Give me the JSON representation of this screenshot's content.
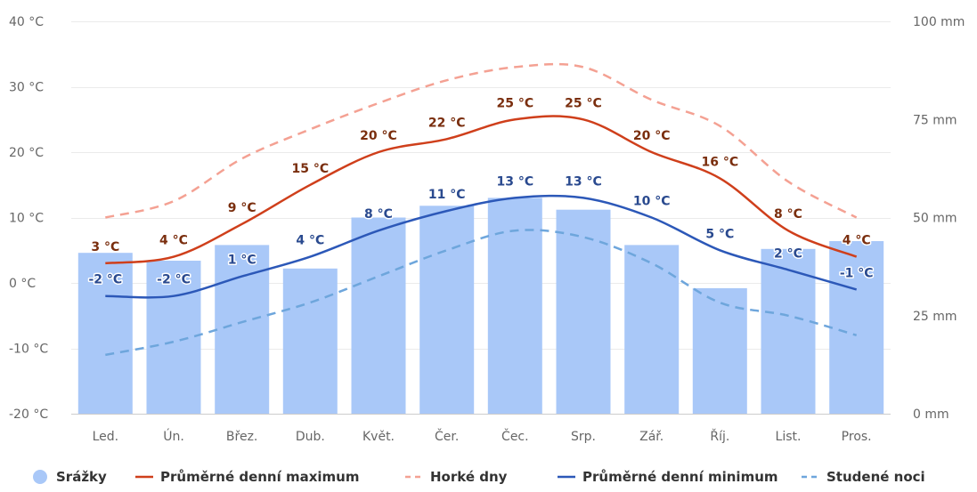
{
  "chart_data": {
    "type": "bar",
    "categories": [
      "Led.",
      "Ún.",
      "Břez.",
      "Dub.",
      "Květ.",
      "Čer.",
      "Čec.",
      "Srp.",
      "Zář.",
      "Říj.",
      "List.",
      "Pros."
    ],
    "y_left": {
      "ticks": [
        "40 °C",
        "30 °C",
        "20 °C",
        "10 °C",
        "0 °C",
        "-10 °C",
        "-20 °C"
      ],
      "tick_values": [
        40,
        30,
        20,
        10,
        0,
        -10,
        -20
      ],
      "range": [
        -20,
        40
      ],
      "unit": "°C"
    },
    "y_right": {
      "ticks": [
        "100 mm",
        "75 mm",
        "50 mm",
        "25 mm",
        "0 mm"
      ],
      "tick_values": [
        100,
        75,
        50,
        25,
        0
      ],
      "range": [
        0,
        100
      ],
      "unit": "mm"
    },
    "grid": true,
    "legend_position": "bottom",
    "series": [
      {
        "name": "Srážky",
        "kind": "bar",
        "axis": "right",
        "color": "#a9c8f8",
        "values": [
          41,
          39,
          43,
          37,
          50,
          53,
          55,
          52,
          43,
          32,
          42,
          44
        ]
      },
      {
        "name": "Průměrné denní maximum",
        "kind": "line",
        "axis": "left",
        "color": "#cf3f1b",
        "dashed": false,
        "values": [
          3,
          4,
          9,
          15,
          20,
          22,
          25,
          25,
          20,
          16,
          8,
          4
        ],
        "labels": [
          "3 °C",
          "4 °C",
          "9 °C",
          "15 °C",
          "20 °C",
          "22 °C",
          "25 °C",
          "25 °C",
          "20 °C",
          "16 °C",
          "8 °C",
          "4 °C"
        ]
      },
      {
        "name": "Horké dny",
        "kind": "line",
        "axis": "left",
        "color": "#f4a193",
        "dashed": true,
        "values": [
          10,
          12.5,
          19,
          23.5,
          27.5,
          31,
          33,
          33,
          28,
          24,
          15.5,
          10
        ]
      },
      {
        "name": "Průměrné denní minimum",
        "kind": "line",
        "axis": "left",
        "color": "#2c58b8",
        "dashed": false,
        "values": [
          -2,
          -2,
          1,
          4,
          8,
          11,
          13,
          13,
          10,
          5,
          2,
          -1
        ],
        "labels": [
          "-2 °C",
          "-2 °C",
          "1 °C",
          "4 °C",
          "8 °C",
          "11 °C",
          "13 °C",
          "13 °C",
          "10 °C",
          "5 °C",
          "2 °C",
          "-1 °C"
        ]
      },
      {
        "name": "Studené noci",
        "kind": "line",
        "axis": "left",
        "color": "#6ea6dc",
        "dashed": true,
        "values": [
          -11,
          -9,
          -6,
          -3,
          1,
          5,
          8,
          7,
          3,
          -3,
          -5,
          -8
        ]
      }
    ]
  }
}
